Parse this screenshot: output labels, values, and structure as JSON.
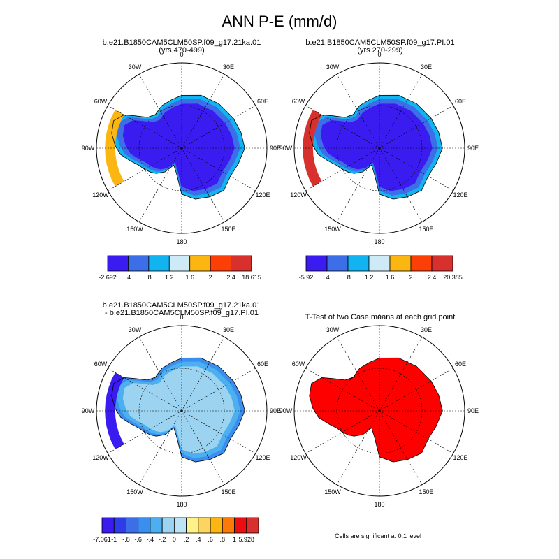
{
  "title": "ANN P-E (mm/d)",
  "lon_labels": [
    "0",
    "30E",
    "60E",
    "90E",
    "120E",
    "150E",
    "180",
    "150W",
    "120W",
    "90W",
    "60W",
    "30W"
  ],
  "panels": [
    {
      "title_line1": "b.e21.B1850CAM5CLM50SP.f09_g17.21ka.01",
      "title_line2": "(yrs 470-499)",
      "colorbar": {
        "labels": [
          "-2.692",
          ".4",
          ".8",
          "1.2",
          "1.6",
          "2",
          "2.4",
          "18.615"
        ],
        "colors": [
          "#3b1cf0",
          "#3c6ee8",
          "#11b4f0",
          "#cdeaf6",
          "#fbb611",
          "#fb3f07",
          "#d8302d"
        ]
      },
      "regions": [
        {
          "color_index": 0,
          "role": "interior"
        },
        {
          "color_index": 1,
          "role": "coast"
        },
        {
          "color_index": 2,
          "role": "fringe"
        },
        {
          "color_index": 4,
          "role": "peninsula"
        }
      ]
    },
    {
      "title_line1": "b.e21.B1850CAM5CLM50SP.f09_g17.PI.01",
      "title_line2": "(yrs 270-299)",
      "colorbar": {
        "labels": [
          "-5.92",
          ".4",
          ".8",
          "1.2",
          "1.6",
          "2",
          "2.4",
          "20.385"
        ],
        "colors": [
          "#3b1cf0",
          "#3c6ee8",
          "#11b4f0",
          "#cdeaf6",
          "#fbb611",
          "#fb3f07",
          "#d8302d"
        ]
      },
      "regions": [
        {
          "color_index": 0,
          "role": "interior"
        },
        {
          "color_index": 1,
          "role": "coast"
        },
        {
          "color_index": 2,
          "role": "fringe"
        },
        {
          "color_index": 6,
          "role": "west-coast"
        }
      ]
    },
    {
      "title_line1": "b.e21.B1850CAM5CLM50SP.f09_g17.21ka.01",
      "title_line2": "- b.e21.B1850CAM5CLM50SP.f09_g17.PI.01",
      "regions": [
        {
          "color_index": 5,
          "role": "interior"
        },
        {
          "color_index": 4,
          "role": "coast"
        },
        {
          "color_index": 3,
          "role": "fringe"
        },
        {
          "color_index": 0,
          "role": "west-coast"
        }
      ]
    },
    {
      "title_line1": "T-Test of two Case means at each grid point",
      "title_line2": "",
      "regions": [
        {
          "color": "#ff0000",
          "role": "significant"
        }
      ]
    }
  ],
  "diff_colorbar": {
    "labels": [
      "-7.061",
      "-1",
      "-.8",
      "-.6",
      "-.4",
      "-.2",
      "0",
      ".2",
      ".4",
      ".6",
      ".8",
      "1",
      "5.928"
    ],
    "colors": [
      "#3b1cf0",
      "#2e3ce8",
      "#3c6ee8",
      "#3a8ef0",
      "#4cb0f0",
      "#9bd3f0",
      "#bde3f4",
      "#fdf28a",
      "#fbd560",
      "#fbb611",
      "#fb7a07",
      "#ea0e0e",
      "#d8302d"
    ]
  },
  "footnote": "Cells are significant at 0.1 level",
  "chart_data": [
    {
      "type": "heatmap",
      "title": "b.e21.B1850CAM5CLM50SP.f09_g17.21ka.01 (yrs 470-499)",
      "projection": "south polar stereographic",
      "variable": "ANN P-E (mm/d)",
      "levels": [
        0.4,
        0.8,
        1.2,
        1.6,
        2.0,
        2.4
      ],
      "min": -2.692,
      "max": 18.615
    },
    {
      "type": "heatmap",
      "title": "b.e21.B1850CAM5CLM50SP.f09_g17.PI.01 (yrs 270-299)",
      "projection": "south polar stereographic",
      "variable": "ANN P-E (mm/d)",
      "levels": [
        0.4,
        0.8,
        1.2,
        1.6,
        2.0,
        2.4
      ],
      "min": -5.92,
      "max": 20.385
    },
    {
      "type": "heatmap",
      "title": "b.e21.B1850CAM5CLM50SP.f09_g17.21ka.01 - b.e21.B1850CAM5CLM50SP.f09_g17.PI.01",
      "projection": "south polar stereographic",
      "levels": [
        -1,
        -0.8,
        -0.6,
        -0.4,
        -0.2,
        0,
        0.2,
        0.4,
        0.6,
        0.8,
        1
      ],
      "min": -7.061,
      "max": 5.928
    },
    {
      "type": "heatmap",
      "title": "T-Test of two Case means at each grid point",
      "projection": "south polar stereographic",
      "significance_level": 0.1
    }
  ]
}
